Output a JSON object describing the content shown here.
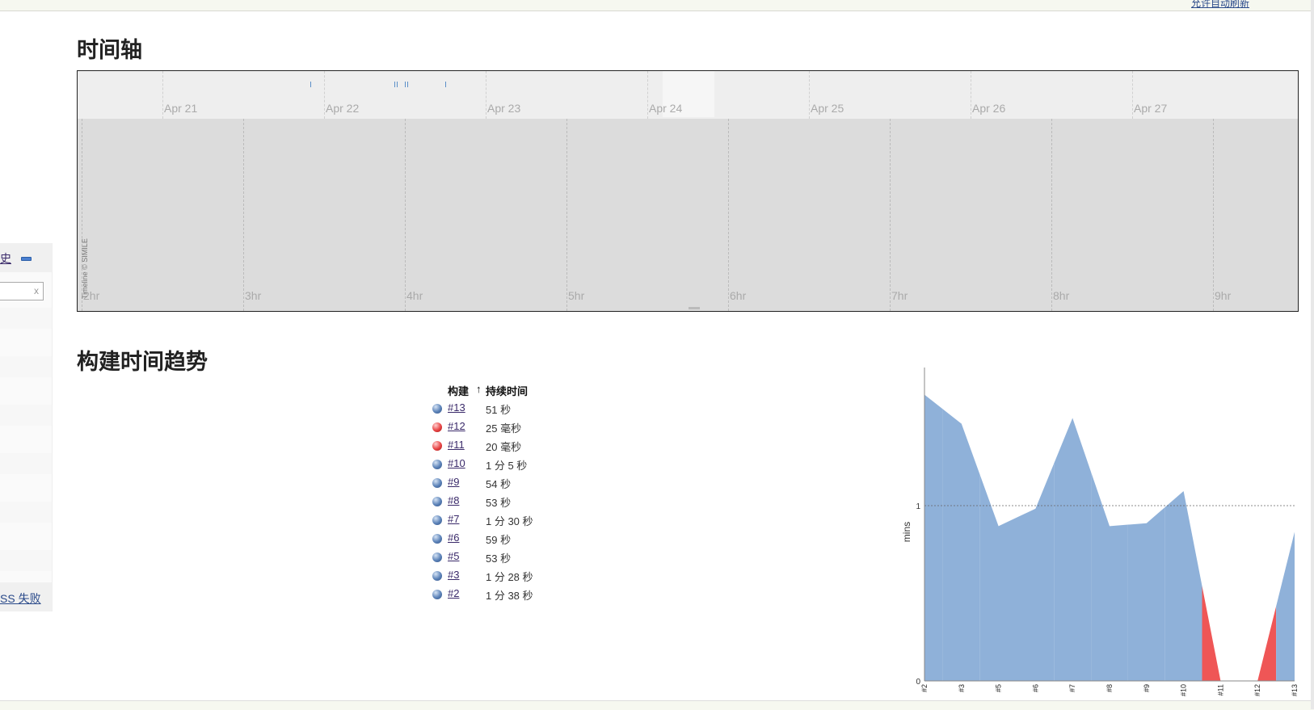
{
  "header": {
    "auto_refresh_link": "允许自动刷新"
  },
  "sidebar": {
    "title": "历史",
    "collapse_icon": "minus-icon",
    "filter_clear": "x",
    "bottom_link": "SS 失败"
  },
  "timeline": {
    "title": "时间轴",
    "dates": [
      "Apr 21",
      "Apr 22",
      "Apr 23",
      "Apr 24",
      "Apr 25",
      "Apr 26",
      "Apr 27"
    ],
    "hours": [
      "2hr",
      "3hr",
      "4hr",
      "5hr",
      "6hr",
      "7hr",
      "8hr",
      "9hr"
    ],
    "credit": "Timeline © SIMILE"
  },
  "trend": {
    "title": "构建时间趋势",
    "columns": {
      "build": "构建",
      "sort_arrow": "↑",
      "duration": "持续时间"
    },
    "builds": [
      {
        "id": "#13",
        "status": "success",
        "duration": "51 秒"
      },
      {
        "id": "#12",
        "status": "failure",
        "duration": "25 毫秒"
      },
      {
        "id": "#11",
        "status": "failure",
        "duration": "20 毫秒"
      },
      {
        "id": "#10",
        "status": "success",
        "duration": "1 分 5 秒"
      },
      {
        "id": "#9",
        "status": "success",
        "duration": "54 秒"
      },
      {
        "id": "#8",
        "status": "success",
        "duration": "53 秒"
      },
      {
        "id": "#7",
        "status": "success",
        "duration": "1 分 30 秒"
      },
      {
        "id": "#6",
        "status": "success",
        "duration": "59 秒"
      },
      {
        "id": "#5",
        "status": "success",
        "duration": "53 秒"
      },
      {
        "id": "#3",
        "status": "success",
        "duration": "1 分 28 秒"
      },
      {
        "id": "#2",
        "status": "success",
        "duration": "1 分 38 秒"
      }
    ]
  },
  "chart_data": {
    "type": "area",
    "categories": [
      "#2",
      "#3",
      "#5",
      "#6",
      "#7",
      "#8",
      "#9",
      "#10",
      "#11",
      "#12",
      "#13"
    ],
    "values": [
      1.633,
      1.467,
      0.883,
      0.983,
      1.5,
      0.883,
      0.9,
      1.083,
      0.0003,
      0.0004,
      0.85
    ],
    "status": [
      "success",
      "success",
      "success",
      "success",
      "success",
      "success",
      "success",
      "success",
      "failure",
      "failure",
      "success"
    ],
    "ylabel": "mins",
    "yticks": [
      "0",
      "1"
    ],
    "ylim": [
      0,
      1.7
    ],
    "colors": {
      "success": "#8fb1d9",
      "failure": "#ef5656"
    },
    "grid": "dashed line at 1"
  }
}
